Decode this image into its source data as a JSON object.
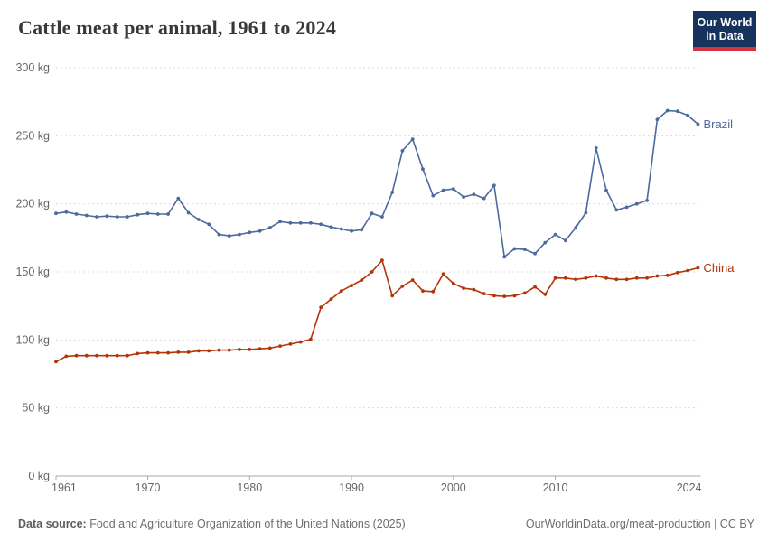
{
  "header": {
    "title": "Cattle meat per animal, 1961 to 2024",
    "logo": {
      "line1": "Our World",
      "line2": "in Data",
      "bg_color": "#15335c",
      "accent_color": "#d1353f"
    }
  },
  "footer": {
    "source_label": "Data source:",
    "source_text": " Food and Agriculture Organization of the United Nations (2025)",
    "rights": "OurWorldinData.org/meat-production | CC BY"
  },
  "chart_data": {
    "type": "line",
    "title": "Cattle meat per animal, 1961 to 2024",
    "unit": "kg",
    "grid": "horizontal-dashed",
    "legend_position": "end-of-line-labels",
    "ylim": [
      0,
      300
    ],
    "yticks": [
      0,
      50,
      100,
      150,
      200,
      250,
      300
    ],
    "ytick_suffix": " kg",
    "xticks": [
      1961,
      1970,
      1980,
      1990,
      2000,
      2010,
      2024
    ],
    "x": [
      1961,
      1962,
      1963,
      1964,
      1965,
      1966,
      1967,
      1968,
      1969,
      1970,
      1971,
      1972,
      1973,
      1974,
      1975,
      1976,
      1977,
      1978,
      1979,
      1980,
      1981,
      1982,
      1983,
      1984,
      1985,
      1986,
      1987,
      1988,
      1989,
      1990,
      1991,
      1992,
      1993,
      1994,
      1995,
      1996,
      1997,
      1998,
      1999,
      2000,
      2001,
      2002,
      2003,
      2004,
      2005,
      2006,
      2007,
      2008,
      2009,
      2010,
      2011,
      2012,
      2013,
      2014,
      2015,
      2016,
      2017,
      2018,
      2019,
      2020,
      2021,
      2022,
      2023,
      2024
    ],
    "series": [
      {
        "name": "Brazil",
        "color": "#4c6a9c",
        "values": [
          193,
          194,
          192.5,
          191.5,
          190.5,
          191,
          190.5,
          190.5,
          192,
          193,
          192.5,
          192.5,
          204,
          193.5,
          188.5,
          185,
          177.5,
          176.5,
          177.5,
          179,
          180,
          182.5,
          187,
          186,
          186,
          186,
          185,
          183,
          181.5,
          180,
          181,
          193,
          190.5,
          208.5,
          239,
          247.5,
          225.5,
          206,
          210,
          211,
          205,
          207,
          204,
          213.5,
          161,
          167,
          166.5,
          163.5,
          171.5,
          177.5,
          173,
          182.5,
          193.5,
          241,
          210,
          195.5,
          197.5,
          200,
          202.5,
          262,
          268.5,
          268,
          265,
          258.5
        ]
      },
      {
        "name": "China",
        "color": "#b13507",
        "values": [
          84,
          88,
          88.5,
          88.5,
          88.5,
          88.5,
          88.5,
          88.5,
          90,
          90.5,
          90.5,
          90.5,
          91,
          91,
          92,
          92,
          92.5,
          92.5,
          93,
          93,
          93.5,
          94,
          95.5,
          97,
          98.5,
          100.5,
          124,
          130,
          136,
          140,
          144,
          150,
          158.5,
          132.5,
          139.5,
          144,
          136,
          135.5,
          148.5,
          141.5,
          138,
          137,
          134,
          132.5,
          132,
          132.5,
          134.5,
          139,
          133.5,
          145.5,
          145.5,
          144.5,
          145.5,
          147,
          145.5,
          144.5,
          144.5,
          145.5,
          145.5,
          147,
          147.5,
          149.5,
          151,
          153
        ]
      }
    ]
  }
}
